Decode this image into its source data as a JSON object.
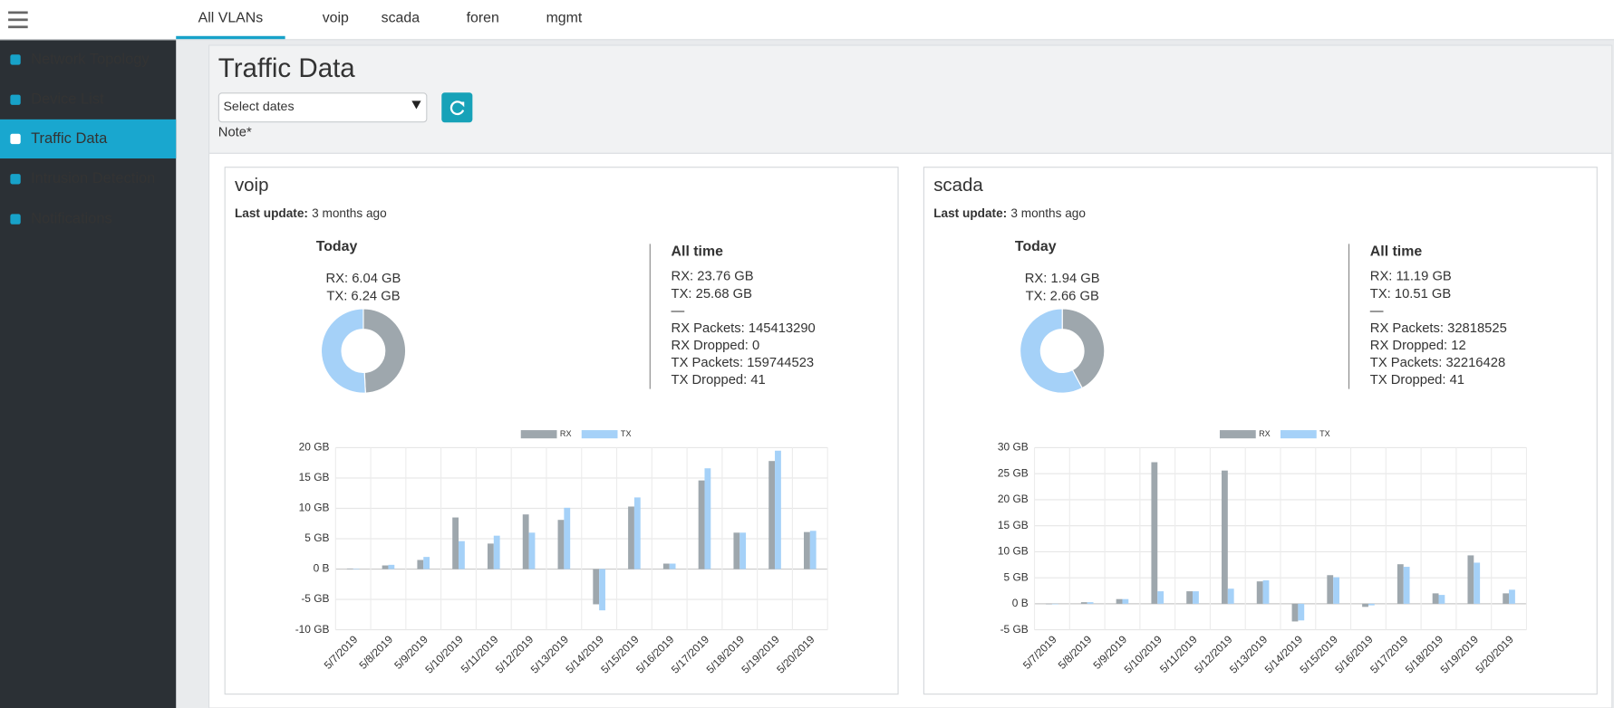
{
  "tabs": [
    "All VLANs",
    "voip",
    "scada",
    "foren",
    "mgmt"
  ],
  "sidebar": [
    "Network Topology",
    "Device List",
    "Traffic Data",
    "Intrusion Detection",
    "Notifications"
  ],
  "header": {
    "title": "Traffic Data",
    "date_select": "Select dates",
    "note": "Note*"
  },
  "panels": [
    {
      "title": "voip",
      "last_update_label": "Last update:",
      "last_update": "3 months ago",
      "today": "Today",
      "all_time": "All time",
      "stats": [
        "RX: 23.76 GB",
        "TX: 25.68 GB",
        "—",
        "RX Packets: 145413290",
        "RX Dropped: 0",
        "TX Packets: 159744523",
        "TX Dropped: 41"
      ]
    },
    {
      "title": "scada",
      "last_update_label": "Last update:",
      "last_update": "3 months ago",
      "today": "Today",
      "all_time": "All time",
      "stats": [
        "RX: 11.19 GB",
        "TX: 10.51 GB",
        "—",
        "RX Packets: 32818525",
        "RX Dropped: 12",
        "TX Packets: 32216428",
        "TX Dropped: 41"
      ]
    }
  ],
  "chart_data": [
    {
      "type": "pie",
      "donut": true,
      "values": [
        6.04,
        6.24
      ],
      "value_labels": [
        "RX: 6.04 GB",
        "TX: 6.24 GB"
      ],
      "colors": [
        "#9ea7ad",
        "#a5d1f8"
      ]
    },
    {
      "type": "bar",
      "categories": [
        "5/7/2019",
        "5/8/2019",
        "5/9/2019",
        "5/10/2019",
        "5/11/2019",
        "5/12/2019",
        "5/13/2019",
        "5/14/2019",
        "5/15/2019",
        "5/16/2019",
        "5/17/2019",
        "5/18/2019",
        "5/19/2019",
        "5/20/2019"
      ],
      "series": [
        {
          "name": "RX",
          "color": "#9ea7ad",
          "values": [
            0.1,
            0.6,
            1.5,
            8.5,
            4.2,
            9.0,
            8.1,
            -5.8,
            10.3,
            0.9,
            14.6,
            6.0,
            17.8,
            6.1
          ]
        },
        {
          "name": "TX",
          "color": "#a5d1f8",
          "values": [
            0.05,
            0.7,
            2.0,
            4.6,
            5.5,
            6.0,
            10.1,
            -6.8,
            11.8,
            0.9,
            16.6,
            6.0,
            19.5,
            6.3
          ]
        }
      ],
      "ylim": [
        -10,
        20
      ],
      "yticks": [
        {
          "value": -10,
          "label": "-10 GB"
        },
        {
          "value": -5,
          "label": "-5 GB"
        },
        {
          "value": 0,
          "label": "0 B"
        },
        {
          "value": 5,
          "label": "5 GB"
        },
        {
          "value": 10,
          "label": "10 GB"
        },
        {
          "value": 15,
          "label": "15 GB"
        },
        {
          "value": 20,
          "label": "20 GB"
        }
      ],
      "grid": true,
      "legend": "top"
    },
    {
      "type": "pie",
      "donut": true,
      "values": [
        1.94,
        2.66
      ],
      "value_labels": [
        "RX: 1.94 GB",
        "TX: 2.66 GB"
      ],
      "colors": [
        "#9ea7ad",
        "#a5d1f8"
      ]
    },
    {
      "type": "bar",
      "categories": [
        "5/7/2019",
        "5/8/2019",
        "5/9/2019",
        "5/10/2019",
        "5/11/2019",
        "5/12/2019",
        "5/13/2019",
        "5/14/2019",
        "5/15/2019",
        "5/16/2019",
        "5/17/2019",
        "5/18/2019",
        "5/19/2019",
        "5/20/2019"
      ],
      "series": [
        {
          "name": "RX",
          "color": "#9ea7ad",
          "values": [
            0,
            0.3,
            0.9,
            27.2,
            2.4,
            25.6,
            4.3,
            -3.4,
            5.5,
            -0.6,
            7.6,
            2.0,
            9.3,
            2.0
          ]
        },
        {
          "name": "TX",
          "color": "#a5d1f8",
          "values": [
            0,
            0.3,
            0.9,
            2.4,
            2.4,
            2.9,
            4.5,
            -3.2,
            5.1,
            -0.3,
            7.1,
            1.7,
            7.9,
            2.7
          ]
        }
      ],
      "ylim": [
        -5,
        30
      ],
      "yticks": [
        {
          "value": -5,
          "label": "-5 GB"
        },
        {
          "value": 0,
          "label": "0 B"
        },
        {
          "value": 5,
          "label": "5 GB"
        },
        {
          "value": 10,
          "label": "10 GB"
        },
        {
          "value": 15,
          "label": "15 GB"
        },
        {
          "value": 20,
          "label": "20 GB"
        },
        {
          "value": 25,
          "label": "25 GB"
        },
        {
          "value": 30,
          "label": "30 GB"
        }
      ],
      "grid": true,
      "legend": "top"
    }
  ]
}
